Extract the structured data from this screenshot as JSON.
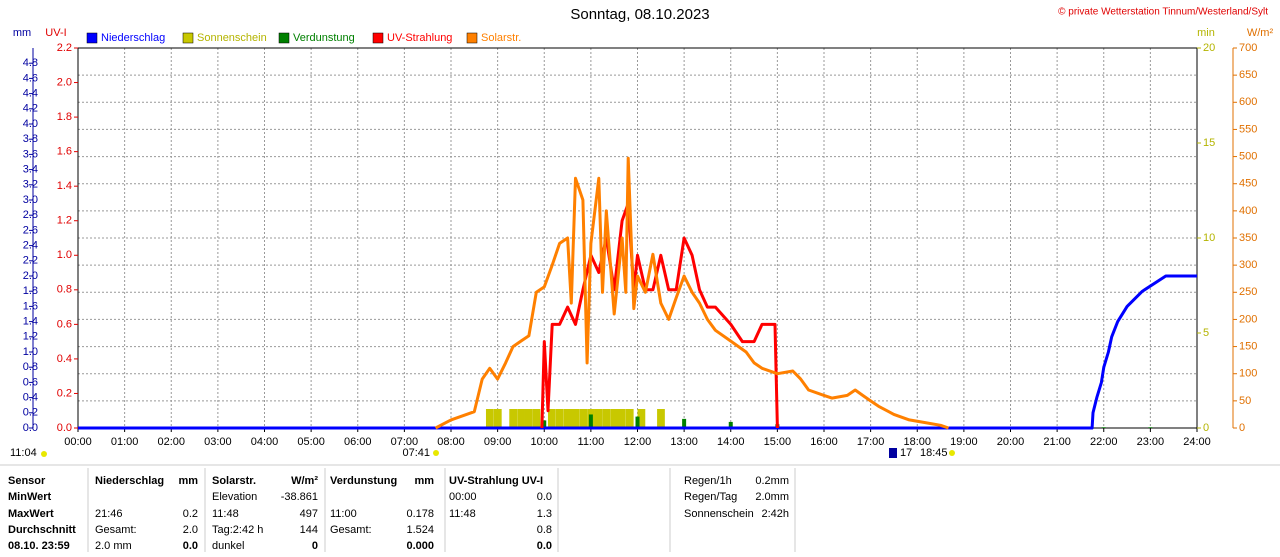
{
  "chart_data": {
    "type": "line",
    "title": "Sonntag, 08.10.2023",
    "copyright": "© private Wetterstation Tinnum/Westerland/Sylt",
    "ylabel": "mm",
    "y2label": "UV-I",
    "y3label": "min",
    "y4label": "W/m²",
    "xlim": [
      0,
      24
    ],
    "xticks": [
      {
        "value": 0,
        "label": "00:00"
      },
      {
        "value": 1,
        "label": "01:00"
      },
      {
        "value": 2,
        "label": "02:00"
      },
      {
        "value": 3,
        "label": "03:00"
      },
      {
        "value": 4,
        "label": "04:00"
      },
      {
        "value": 5,
        "label": "05:00"
      },
      {
        "value": 6,
        "label": "06:00"
      },
      {
        "value": 7,
        "label": "07:00"
      },
      {
        "value": 8,
        "label": "08:00"
      },
      {
        "value": 9,
        "label": "09:00"
      },
      {
        "value": 10,
        "label": "10:00"
      },
      {
        "value": 11,
        "label": "11:00"
      },
      {
        "value": 12,
        "label": "12:00"
      },
      {
        "value": 13,
        "label": "13:00"
      },
      {
        "value": 14,
        "label": "14:00"
      },
      {
        "value": 15,
        "label": "15:00"
      },
      {
        "value": 16,
        "label": "16:00"
      },
      {
        "value": 17,
        "label": "17:00"
      },
      {
        "value": 18,
        "label": "18:00"
      },
      {
        "value": 19,
        "label": "19:00"
      },
      {
        "value": 20,
        "label": "20:00"
      },
      {
        "value": 21,
        "label": "21:00"
      },
      {
        "value": 22,
        "label": "22:00"
      },
      {
        "value": 23,
        "label": "23:00"
      },
      {
        "value": 24,
        "label": "24:00"
      }
    ],
    "ylim": [
      0,
      5
    ],
    "yticks": [
      {
        "value": 0,
        "label": "0.0"
      },
      {
        "value": 0.2,
        "label": "0.2"
      },
      {
        "value": 0.4,
        "label": "0.4"
      },
      {
        "value": 0.6,
        "label": "0.6"
      },
      {
        "value": 0.8,
        "label": "0.8"
      },
      {
        "value": 1,
        "label": "1.0"
      },
      {
        "value": 1.2,
        "label": "1.2"
      },
      {
        "value": 1.4,
        "label": "1.4"
      },
      {
        "value": 1.6,
        "label": "1.6"
      },
      {
        "value": 1.8,
        "label": "1.8"
      },
      {
        "value": 2,
        "label": "2.0"
      },
      {
        "value": 2.2,
        "label": "2.2"
      },
      {
        "value": 2.4,
        "label": "2.4"
      },
      {
        "value": 2.6,
        "label": "2.6"
      },
      {
        "value": 2.8,
        "label": "2.8"
      },
      {
        "value": 3,
        "label": "3.0"
      },
      {
        "value": 3.2,
        "label": "3.2"
      },
      {
        "value": 3.4,
        "label": "3.4"
      },
      {
        "value": 3.6,
        "label": "3.6"
      },
      {
        "value": 3.8,
        "label": "3.8"
      },
      {
        "value": 4,
        "label": "4.0"
      },
      {
        "value": 4.2,
        "label": "4.2"
      },
      {
        "value": 4.4,
        "label": "4.4"
      },
      {
        "value": 4.6,
        "label": "4.6"
      },
      {
        "value": 4.8,
        "label": "4.8"
      }
    ],
    "y2lim": [
      0,
      2.2
    ],
    "y2ticks": [
      {
        "value": 0,
        "label": "0.0"
      },
      {
        "value": 0.2,
        "label": "0.2"
      },
      {
        "value": 0.4,
        "label": "0.4"
      },
      {
        "value": 0.6,
        "label": "0.6"
      },
      {
        "value": 0.8,
        "label": "0.8"
      },
      {
        "value": 1,
        "label": "1.0"
      },
      {
        "value": 1.2,
        "label": "1.2"
      },
      {
        "value": 1.4,
        "label": "1.4"
      },
      {
        "value": 1.6,
        "label": "1.6"
      },
      {
        "value": 1.8,
        "label": "1.8"
      },
      {
        "value": 2,
        "label": "2.0"
      },
      {
        "value": 2.2,
        "label": "2.2"
      }
    ],
    "y3lim": [
      0,
      20
    ],
    "y3ticks": [
      0,
      5,
      10,
      15,
      20
    ],
    "y4lim": [
      0,
      700
    ],
    "y4ticks": [
      0,
      50,
      100,
      150,
      200,
      250,
      300,
      350,
      400,
      450,
      500,
      550,
      600,
      650,
      700
    ],
    "grid": true,
    "series": [
      {
        "name": "Niederschlag",
        "color": "#0000ff",
        "axis": "y",
        "kind": "line",
        "x": [
          0,
          21.75,
          21.77,
          21.85,
          21.95,
          22.0,
          22.1,
          22.17,
          22.3,
          22.5,
          22.83,
          23.33,
          24
        ],
        "values": [
          0,
          0,
          0.2,
          0.4,
          0.6,
          0.8,
          1.0,
          1.2,
          1.4,
          1.6,
          1.8,
          2.0,
          2.0
        ]
      },
      {
        "name": "Sonnenschein",
        "color": "#c8c800",
        "axis": "y3",
        "kind": "bar",
        "x": [
          8.75,
          8.92,
          9.25,
          9.42,
          9.58,
          9.75,
          10.08,
          10.25,
          10.42,
          10.58,
          10.75,
          10.92,
          11.08,
          11.25,
          11.42,
          11.58,
          11.75,
          12.0,
          12.42
        ],
        "values": [
          1,
          1,
          1,
          1,
          1,
          1,
          1,
          1,
          1,
          1,
          1,
          1,
          1,
          1,
          1,
          1,
          1,
          1,
          1
        ]
      },
      {
        "name": "Verdunstung",
        "color": "#008000",
        "axis": "y",
        "kind": "bar",
        "x": [
          1,
          2,
          3,
          4,
          5,
          6,
          7,
          8,
          9,
          10,
          11,
          12,
          13,
          14,
          15,
          16,
          17,
          18,
          19,
          20,
          21,
          22,
          23
        ],
        "values": [
          0.01,
          0.01,
          0.01,
          0.01,
          0.01,
          0.01,
          0.01,
          0.01,
          0.01,
          0.1,
          0.178,
          0.15,
          0.12,
          0.08,
          0.05,
          0.01,
          0.01,
          0.01,
          0.01,
          0.01,
          0.01,
          0.01,
          0.01
        ]
      },
      {
        "name": "UV-Strahlung",
        "color": "#ff0000",
        "axis": "y2",
        "kind": "line",
        "x": [
          9.95,
          10.0,
          10.08,
          10.17,
          10.33,
          10.5,
          10.67,
          10.83,
          11.0,
          11.17,
          11.33,
          11.5,
          11.67,
          11.8,
          11.92,
          12.0,
          12.17,
          12.33,
          12.5,
          12.67,
          12.83,
          13.0,
          13.17,
          13.33,
          13.5,
          13.67,
          14.0,
          14.25,
          14.5,
          14.67,
          14.95,
          15.0
        ],
        "values": [
          0,
          0.5,
          0.1,
          0.6,
          0.6,
          0.7,
          0.6,
          0.8,
          1.0,
          0.9,
          1.1,
          0.8,
          1.2,
          1.3,
          0.8,
          1.0,
          0.8,
          0.8,
          1.0,
          0.8,
          0.8,
          1.1,
          1.0,
          0.8,
          0.7,
          0.7,
          0.6,
          0.5,
          0.5,
          0.6,
          0.6,
          0.0
        ]
      },
      {
        "name": "Solarstr.",
        "color": "#ff8000",
        "axis": "y4",
        "kind": "line",
        "x": [
          7.67,
          8.0,
          8.5,
          8.67,
          8.83,
          9.0,
          9.17,
          9.33,
          9.5,
          9.67,
          9.83,
          10.0,
          10.17,
          10.33,
          10.5,
          10.58,
          10.67,
          10.83,
          10.92,
          11.0,
          11.17,
          11.25,
          11.33,
          11.5,
          11.67,
          11.75,
          11.8,
          11.92,
          12.0,
          12.17,
          12.33,
          12.5,
          12.67,
          12.83,
          13.0,
          13.17,
          13.33,
          13.5,
          13.67,
          14.0,
          14.33,
          14.5,
          14.67,
          15.0,
          15.33,
          15.5,
          15.67,
          16.0,
          16.17,
          16.5,
          16.67,
          16.83,
          17.0,
          17.17,
          17.5,
          17.83,
          18.17,
          18.5,
          18.67
        ],
        "values": [
          0,
          15,
          30,
          90,
          110,
          90,
          120,
          150,
          160,
          170,
          250,
          260,
          300,
          340,
          350,
          230,
          460,
          420,
          120,
          340,
          460,
          250,
          400,
          210,
          350,
          250,
          497,
          220,
          280,
          250,
          320,
          230,
          200,
          240,
          280,
          250,
          230,
          200,
          180,
          160,
          140,
          120,
          110,
          100,
          105,
          90,
          70,
          60,
          55,
          60,
          70,
          60,
          50,
          40,
          25,
          15,
          10,
          5,
          0
        ]
      }
    ],
    "daylength_label": "11:04",
    "sunrise_label": "07:41",
    "marker_label": "17",
    "sunset_label": "18:45"
  },
  "stats": {
    "rows": [
      [
        "Sensor",
        "Niederschlag",
        "mm",
        "Solarstr.",
        "W/m²",
        "Verdunstung",
        "mm",
        "UV-Strahlung UV-I",
        null,
        "Regen/1h",
        "0.2mm"
      ],
      [
        "MinWert",
        null,
        null,
        "Elevation",
        "-38.861",
        null,
        null,
        "00:00",
        "0.0",
        "Regen/Tag",
        "2.0mm"
      ],
      [
        "MaxWert",
        "21:46",
        "0.2",
        "11:48",
        "497",
        "11:00",
        "0.178",
        "11:48",
        "1.3",
        "Sonnenschein",
        "2:42h"
      ],
      [
        "Durchschnitt",
        "Gesamt:",
        "2.0",
        "Tag:2:42 h",
        "144",
        "Gesamt:",
        "1.524",
        null,
        "0.8",
        null,
        null
      ],
      [
        "08.10. 23:59",
        "2.0 mm",
        "0.0",
        "dunkel",
        "0",
        null,
        "0.000",
        null,
        "0.0",
        null,
        null
      ]
    ]
  }
}
